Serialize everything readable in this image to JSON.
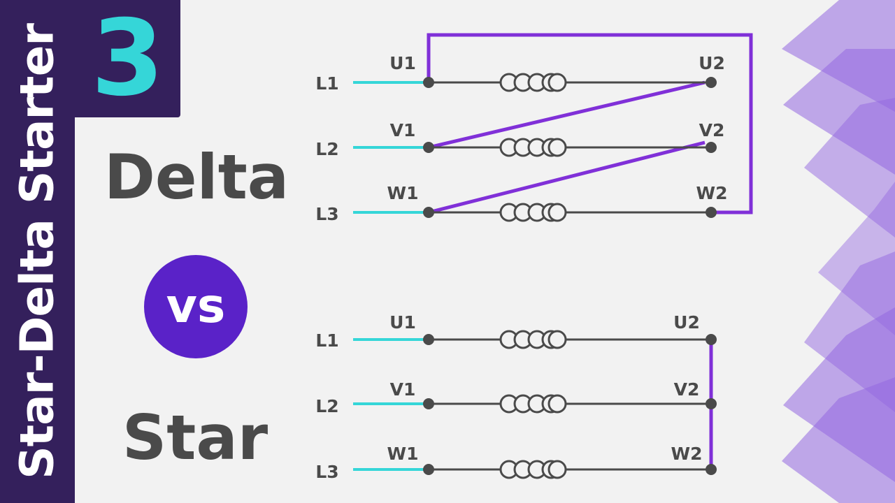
{
  "sidebar": {
    "series_title": "Star-Delta Starter",
    "color": "#34205c"
  },
  "badge": {
    "number": "3",
    "number_color": "#35d6d8"
  },
  "titles": {
    "top": "Delta",
    "middle": "vs",
    "bottom": "Star"
  },
  "colors": {
    "line_input": "#35d6d8",
    "winding": "#4a4a4a",
    "connection": "#8030d8",
    "vs_circle": "#5a22c8",
    "decoration": "#9468e0"
  },
  "delta_diagram": {
    "rows": [
      {
        "line": "L1",
        "start": "U1",
        "end": "U2"
      },
      {
        "line": "L2",
        "start": "V1",
        "end": "V2"
      },
      {
        "line": "L3",
        "start": "W1",
        "end": "W2"
      }
    ]
  },
  "star_diagram": {
    "rows": [
      {
        "line": "L1",
        "start": "U1",
        "end": "U2"
      },
      {
        "line": "L2",
        "start": "V1",
        "end": "V2"
      },
      {
        "line": "L3",
        "start": "W1",
        "end": "W2"
      }
    ]
  }
}
